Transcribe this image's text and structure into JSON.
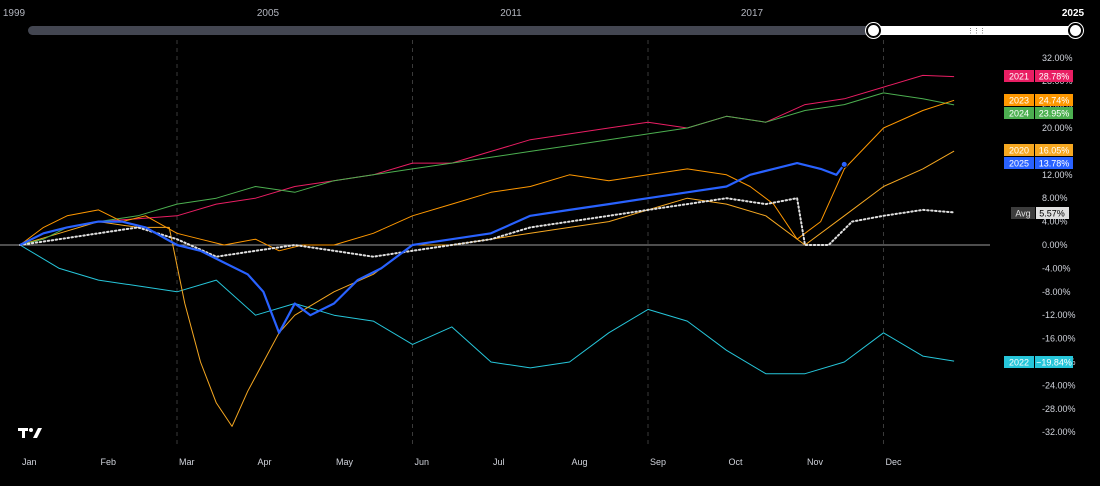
{
  "range_selector": {
    "years": [
      "1999",
      "2005",
      "2011",
      "2017",
      "2025"
    ]
  },
  "colors": {
    "2021": "#e91e63",
    "2023": "#ff9800",
    "2024": "#4caf50",
    "2020": "#f6a821",
    "2025": "#2962ff",
    "2022": "#26c6da",
    "avg": "#e0e0e0"
  },
  "chart_data": {
    "type": "line",
    "x_axis": [
      "Jan",
      "Feb",
      "Mar",
      "Apr",
      "May",
      "Jun",
      "Jul",
      "Aug",
      "Sep",
      "Oct",
      "Nov",
      "Dec"
    ],
    "y_ticks": [
      "32.00%",
      "28.00%",
      "24.00%",
      "20.00%",
      "16.00%",
      "12.00%",
      "8.00%",
      "4.00%",
      "0.00%",
      "-4.00%",
      "-8.00%",
      "-12.00%",
      "-16.00%",
      "-20.00%",
      "-24.00%",
      "-28.00%",
      "-32.00%"
    ],
    "ylim": [
      -32,
      32
    ],
    "grid": "vertical dashed at Mar, Jun, Sep, Dec",
    "series": [
      {
        "name": "2021",
        "label": "28.78%",
        "color": "#e91e63",
        "x": [
          0,
          0.3,
          0.6,
          1,
          1.5,
          2,
          2.5,
          3,
          3.5,
          4,
          4.5,
          5,
          5.5,
          6,
          6.5,
          7,
          7.5,
          8,
          8.5,
          9,
          9.5,
          10,
          10.5,
          11,
          11.5,
          11.9
        ],
        "y": [
          0,
          2,
          3,
          4,
          4.5,
          5,
          7,
          8,
          10,
          11,
          12,
          14,
          14,
          16,
          18,
          19,
          20,
          21,
          20,
          22,
          21,
          24,
          25,
          27,
          29,
          28.78
        ]
      },
      {
        "name": "2023",
        "label": "24.74%",
        "color": "#ff9800",
        "x": [
          0,
          0.3,
          0.6,
          1,
          1.3,
          1.6,
          2,
          2.3,
          2.6,
          3,
          3.3,
          3.6,
          4,
          4.5,
          5,
          5.5,
          6,
          6.5,
          7,
          7.5,
          8,
          8.5,
          9,
          9.3,
          9.6,
          9.9,
          10.2,
          10.5,
          11,
          11.5,
          11.9
        ],
        "y": [
          0,
          3,
          5,
          6,
          4,
          5,
          2,
          1,
          0,
          1,
          -1,
          0,
          0,
          2,
          5,
          7,
          9,
          10,
          12,
          11,
          12,
          13,
          12,
          10,
          7,
          1,
          4,
          13,
          20,
          23,
          24.74
        ]
      },
      {
        "name": "2024",
        "label": "23.95%",
        "color": "#4caf50",
        "x": [
          0,
          0.3,
          0.6,
          1,
          1.5,
          2,
          2.5,
          3,
          3.5,
          4,
          4.5,
          5,
          5.5,
          6,
          6.5,
          7,
          7.5,
          8,
          8.5,
          9,
          9.5,
          10,
          10.5,
          11,
          11.5,
          11.9
        ],
        "y": [
          0,
          1,
          3,
          4,
          5,
          7,
          8,
          10,
          9,
          11,
          12,
          13,
          14,
          15,
          16,
          17,
          18,
          19,
          20,
          22,
          21,
          23,
          24,
          26,
          25,
          23.95
        ]
      },
      {
        "name": "2020",
        "label": "16.05%",
        "color": "#f6a821",
        "x": [
          0,
          0.5,
          1,
          1.5,
          1.9,
          2.1,
          2.3,
          2.5,
          2.7,
          2.9,
          3.1,
          3.3,
          3.5,
          4,
          4.5,
          5,
          5.5,
          6,
          6.5,
          7,
          7.5,
          8,
          8.5,
          9,
          9.5,
          10,
          10.5,
          11,
          11.5,
          11.9
        ],
        "y": [
          0,
          2,
          4,
          3,
          3,
          -10,
          -20,
          -27,
          -31,
          -25,
          -20,
          -15,
          -12,
          -8,
          -5,
          0,
          0,
          1,
          2,
          3,
          4,
          6,
          8,
          7,
          5,
          0,
          5,
          10,
          13,
          16.05
        ]
      },
      {
        "name": "2025",
        "label": "13.78%",
        "color": "#2962ff",
        "x": [
          0,
          0.3,
          0.6,
          1,
          1.3,
          1.6,
          2,
          2.3,
          2.6,
          2.9,
          3.1,
          3.3,
          3.5,
          3.7,
          4,
          4.3,
          4.6,
          5,
          5.5,
          6,
          6.5,
          7,
          7.5,
          8,
          8.5,
          9,
          9.3,
          9.6,
          9.9,
          10.2,
          10.4,
          10.5
        ],
        "y": [
          0,
          2,
          3,
          4,
          4,
          3,
          0,
          -1,
          -3,
          -5,
          -8,
          -15,
          -10,
          -12,
          -10,
          -6,
          -4,
          0,
          1,
          2,
          5,
          6,
          7,
          8,
          9,
          10,
          12,
          13,
          14,
          13,
          12,
          13.78
        ]
      },
      {
        "name": "2022",
        "label": "−19.84%",
        "color": "#26c6da",
        "x": [
          0,
          0.5,
          1,
          1.5,
          2,
          2.5,
          3,
          3.5,
          4,
          4.5,
          5,
          5.5,
          6,
          6.5,
          7,
          7.5,
          8,
          8.5,
          9,
          9.5,
          10,
          10.5,
          11,
          11.5,
          11.9
        ],
        "y": [
          0,
          -4,
          -6,
          -7,
          -8,
          -6,
          -12,
          -10,
          -12,
          -13,
          -17,
          -14,
          -20,
          -21,
          -20,
          -15,
          -11,
          -13,
          -18,
          -22,
          -22,
          -20,
          -15,
          -19,
          -19.84
        ]
      },
      {
        "name": "Avg",
        "label": "5.57%",
        "color": "#e0e0e0",
        "dotted": true,
        "x": [
          0,
          0.5,
          1,
          1.5,
          2,
          2.5,
          3,
          3.5,
          4,
          4.5,
          5,
          5.5,
          6,
          6.5,
          7,
          7.5,
          8,
          8.5,
          9,
          9.5,
          9.9,
          10,
          10.3,
          10.6,
          11,
          11.5,
          11.9
        ],
        "y": [
          0,
          1,
          2,
          3,
          1,
          -2,
          -1,
          0,
          -1,
          -2,
          -1,
          0,
          1,
          3,
          4,
          5,
          6,
          7,
          8,
          7,
          8,
          0,
          0,
          4,
          5,
          6,
          5.57
        ]
      }
    ]
  }
}
